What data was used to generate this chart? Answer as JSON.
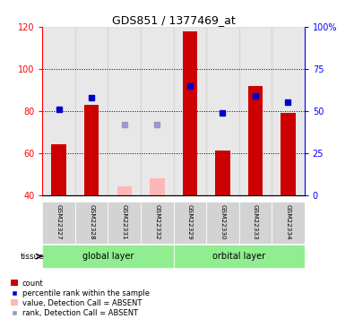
{
  "title": "GDS851 / 1377469_at",
  "samples": [
    "GSM22327",
    "GSM22328",
    "GSM22331",
    "GSM22332",
    "GSM22329",
    "GSM22330",
    "GSM22333",
    "GSM22334"
  ],
  "groups": [
    {
      "name": "global layer",
      "indices": [
        0,
        1,
        2,
        3
      ],
      "color": "#90ee90"
    },
    {
      "name": "orbital layer",
      "indices": [
        4,
        5,
        6,
        7
      ],
      "color": "#90ee90"
    }
  ],
  "bar_values": [
    64,
    83,
    null,
    null,
    118,
    61,
    92,
    79
  ],
  "absent_bar_values": [
    null,
    null,
    44,
    48,
    null,
    null,
    null,
    null
  ],
  "rank_values": [
    51,
    58,
    null,
    null,
    65,
    49,
    59,
    55
  ],
  "rank_absent_values": [
    null,
    null,
    42,
    42,
    null,
    null,
    null,
    null
  ],
  "bar_color_present": "#cc0000",
  "bar_color_absent": "#ffb6b6",
  "rank_color_present": "#0000cc",
  "rank_color_absent": "#9999cc",
  "ylim_left": [
    40,
    120
  ],
  "ylim_right": [
    0,
    100
  ],
  "yticks_left": [
    40,
    60,
    80,
    100,
    120
  ],
  "yticks_right": [
    0,
    25,
    50,
    75,
    100
  ],
  "yticklabels_right": [
    "0",
    "25",
    "50",
    "75",
    "100%"
  ],
  "bar_width": 0.45,
  "rank_marker_size": 5
}
